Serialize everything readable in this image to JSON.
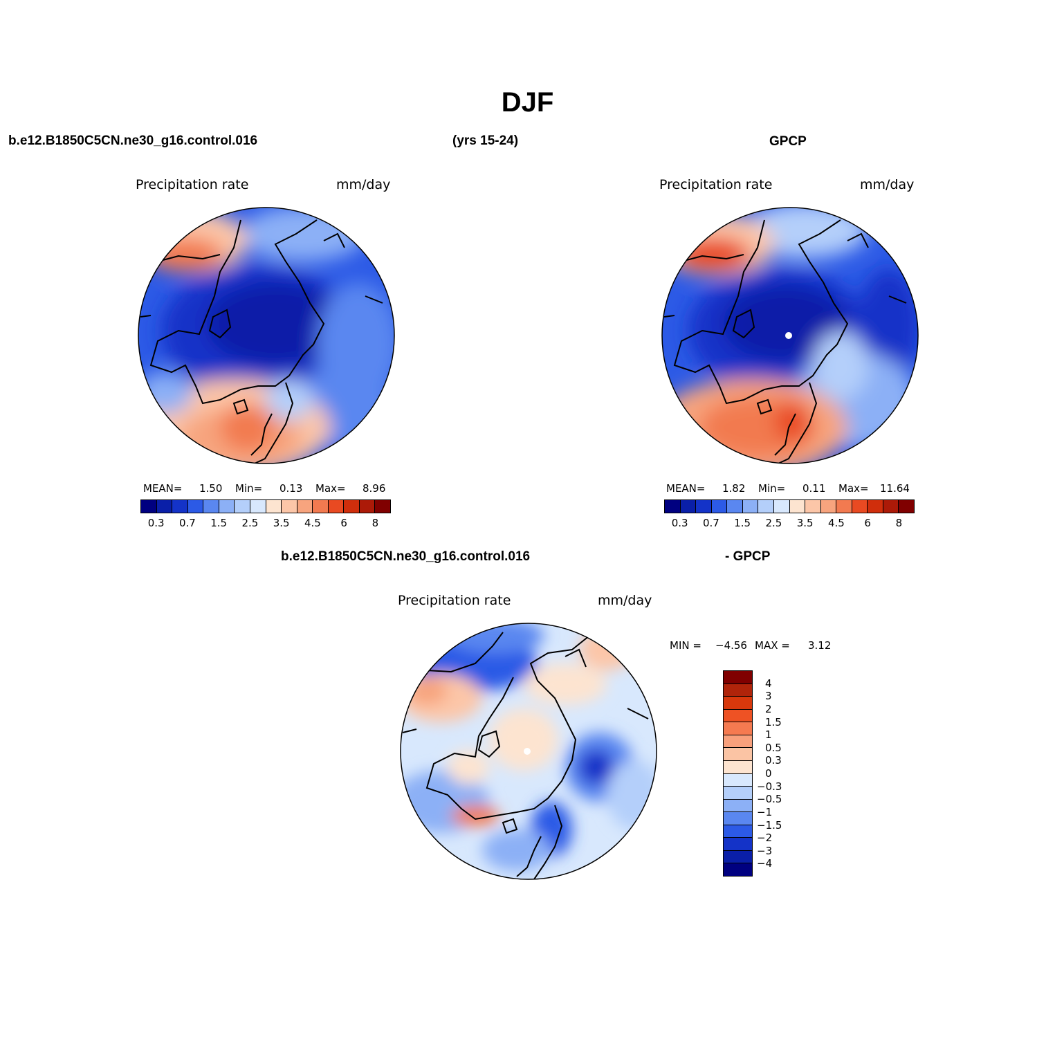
{
  "title": "DJF",
  "panel1": {
    "case_label": "b.e12.B1850C5CN.ne30_g16.control.016",
    "years_label": "(yrs 15-24)",
    "field": "Precipitation  rate",
    "units": "mm/day",
    "stats": {
      "mean_label": "MEAN=",
      "mean": "1.50",
      "min_label": "Min=",
      "min": "0.13",
      "max_label": "Max=",
      "max": "8.96"
    }
  },
  "panel2": {
    "case_label": "GPCP",
    "field": "Precipitation  rate",
    "units": "mm/day",
    "stats": {
      "mean_label": "MEAN=",
      "mean": "1.82",
      "min_label": "Min=",
      "min": "0.11",
      "max_label": "Max=",
      "max": "11.64"
    }
  },
  "panel3": {
    "case_label": "b.e12.B1850C5CN.ne30_g16.control.016",
    "minus_label": "- GPCP",
    "field": "Precipitation  rate",
    "units": "mm/day",
    "stats": {
      "min_label": "MIN =",
      "min": "−4.56",
      "max_label": "MAX =",
      "max": "3.12"
    }
  },
  "colorbar_abs": {
    "colors": [
      "#000080",
      "#0a1fa8",
      "#1433c8",
      "#2c5ae6",
      "#5a87f0",
      "#8cb0f6",
      "#b4cffa",
      "#d8e8fd",
      "#fde4d0",
      "#fcc6a8",
      "#f7a47e",
      "#f27a50",
      "#e94a22",
      "#d02e0c",
      "#ac1a08",
      "#800000"
    ],
    "ticks": [
      "0.3",
      "0.7",
      "1.5",
      "2.5",
      "3.5",
      "4.5",
      "6",
      "8"
    ]
  },
  "colorbar_diff": {
    "colors_top_to_bottom": [
      "#800000",
      "#b0240a",
      "#d8380c",
      "#ee5224",
      "#f57a50",
      "#f8a07c",
      "#fbc4a4",
      "#fde4d0",
      "#d8e8fd",
      "#b4cffa",
      "#8cb0f6",
      "#5a87f0",
      "#2c5ae6",
      "#1433c8",
      "#0a1fa8",
      "#000080"
    ],
    "ticks_top_to_bottom": [
      "4",
      "3",
      "2",
      "1.5",
      "1",
      "0.5",
      "0.3",
      "0",
      "−0.3",
      "−0.5",
      "−1",
      "−1.5",
      "−2",
      "−3",
      "−4"
    ]
  }
}
